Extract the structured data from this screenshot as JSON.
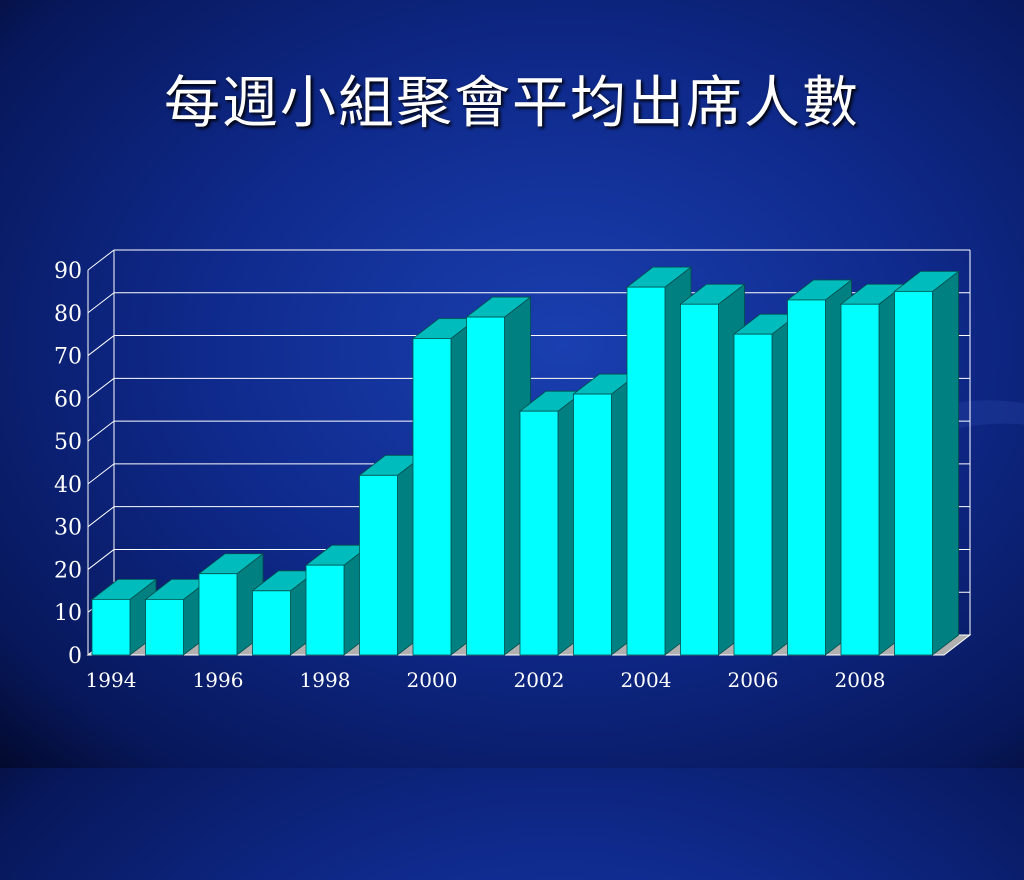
{
  "slide": {
    "title": "每週小組聚會平均出席人數"
  },
  "colors": {
    "bar_front": "#00ffff",
    "bar_top": "#00bcbc",
    "bar_side": "#008080",
    "grid": "#ffffff",
    "floor": "#b0b0b0"
  },
  "chart_data": {
    "type": "bar",
    "style": "3d-column",
    "categories": [
      "1994",
      "1995",
      "1996",
      "1997",
      "1998",
      "1999",
      "2000",
      "2001",
      "2002",
      "2003",
      "2004",
      "2005",
      "2006",
      "2007",
      "2008",
      "2009"
    ],
    "x_tick_labels": [
      "1994",
      "1996",
      "1998",
      "2000",
      "2002",
      "2004",
      "2006",
      "2008"
    ],
    "values": [
      13,
      13,
      19,
      15,
      21,
      42,
      74,
      79,
      57,
      61,
      86,
      82,
      75,
      83,
      82,
      85
    ],
    "y_ticks": [
      0,
      10,
      20,
      30,
      40,
      50,
      60,
      70,
      80,
      90
    ],
    "ylim": [
      0,
      90
    ],
    "grid": true,
    "legend": "none",
    "xlabel": "",
    "ylabel": ""
  }
}
